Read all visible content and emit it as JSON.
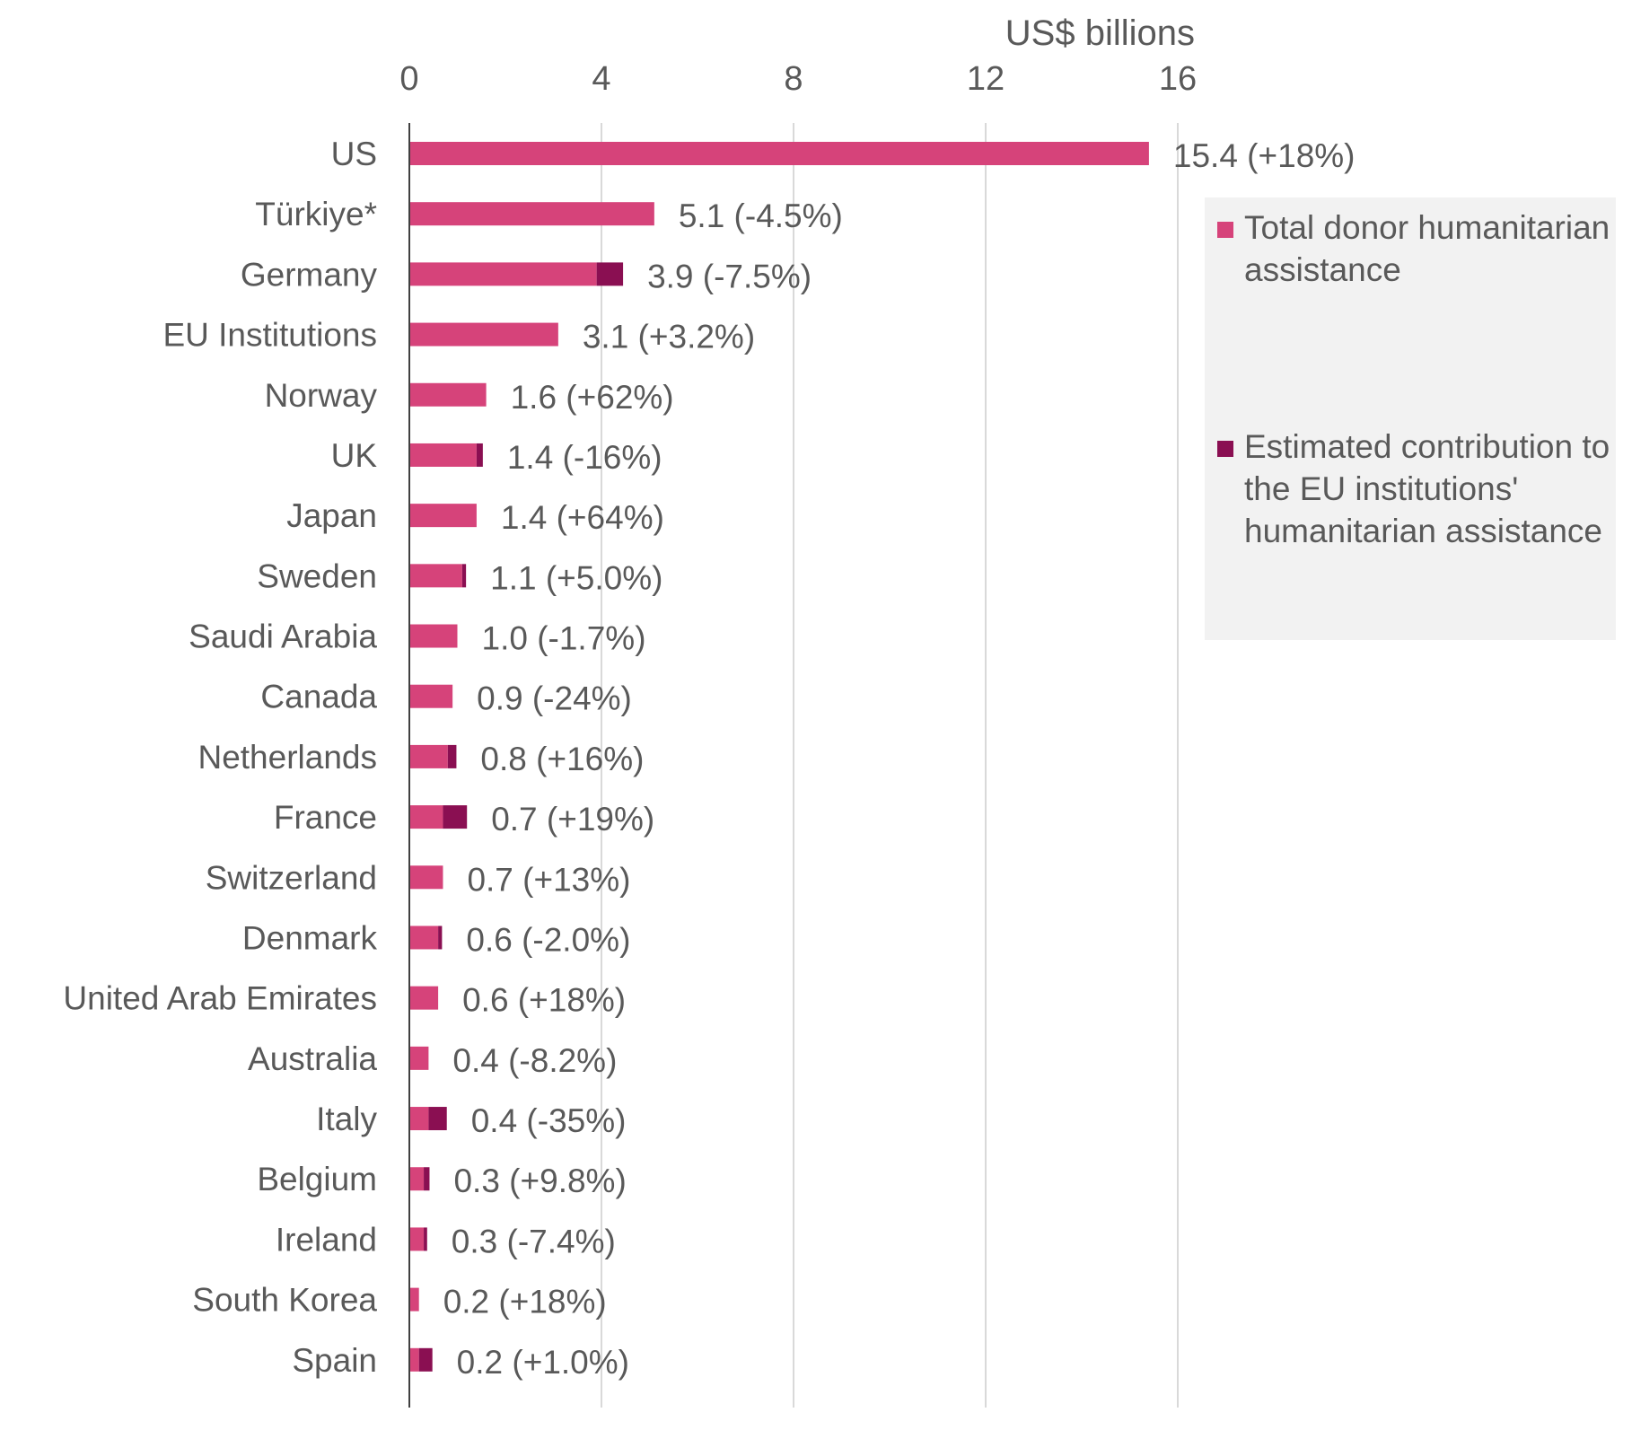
{
  "chart_data": {
    "type": "bar",
    "orientation": "horizontal",
    "stacked": true,
    "xlabel": "US$ billions",
    "xlim": [
      0,
      16
    ],
    "xticks": [
      0,
      4,
      8,
      12,
      16
    ],
    "grid": "vertical",
    "legend_position": "right",
    "categories": [
      "US",
      "Türkiye*",
      "Germany",
      "EU Institutions",
      "Norway",
      "UK",
      "Japan",
      "Sweden",
      "Saudi Arabia",
      "Canada",
      "Netherlands",
      "France",
      "Switzerland",
      "Denmark",
      "United Arab Emirates",
      "Australia",
      "Italy",
      "Belgium",
      "Ireland",
      "South Korea",
      "Spain"
    ],
    "series": [
      {
        "name": "Total donor humanitarian assistance",
        "color": "#d6437a",
        "values": [
          15.4,
          5.1,
          3.9,
          3.1,
          1.6,
          1.4,
          1.4,
          1.1,
          1.0,
          0.9,
          0.8,
          0.7,
          0.7,
          0.6,
          0.6,
          0.4,
          0.4,
          0.3,
          0.3,
          0.2,
          0.2
        ]
      },
      {
        "name": "Estimated contribution to the EU institutions' humanitarian assistance",
        "color": "#8a0f52",
        "values": [
          0,
          0,
          0.55,
          0,
          0,
          0.13,
          0,
          0.08,
          0,
          0,
          0.18,
          0.5,
          0,
          0.08,
          0,
          0,
          0.38,
          0.12,
          0.07,
          0,
          0.28
        ]
      }
    ],
    "data_labels": [
      "15.4 (+18%)",
      "5.1 (-4.5%)",
      "3.9 (-7.5%)",
      "3.1 (+3.2%)",
      "1.6 (+62%)",
      "1.4 (-16%)",
      "1.4 (+64%)",
      "1.1 (+5.0%)",
      "1.0 (-1.7%)",
      "0.9 (-24%)",
      "0.8 (+16%)",
      "0.7 (+19%)",
      "0.7 (+13%)",
      "0.6 (-2.0%)",
      "0.6 (+18%)",
      "0.4 (-8.2%)",
      "0.4 (-35%)",
      "0.3 (+9.8%)",
      "0.3 (-7.4%)",
      "0.2 (+18%)",
      "0.2 (+1.0%)"
    ]
  },
  "legend": {
    "items": [
      {
        "label": "Total donor humanitarian assistance",
        "color": "#d6437a"
      },
      {
        "label": "Estimated contribution to the EU institutions' humanitarian assistance",
        "color": "#8a0f52"
      }
    ]
  }
}
